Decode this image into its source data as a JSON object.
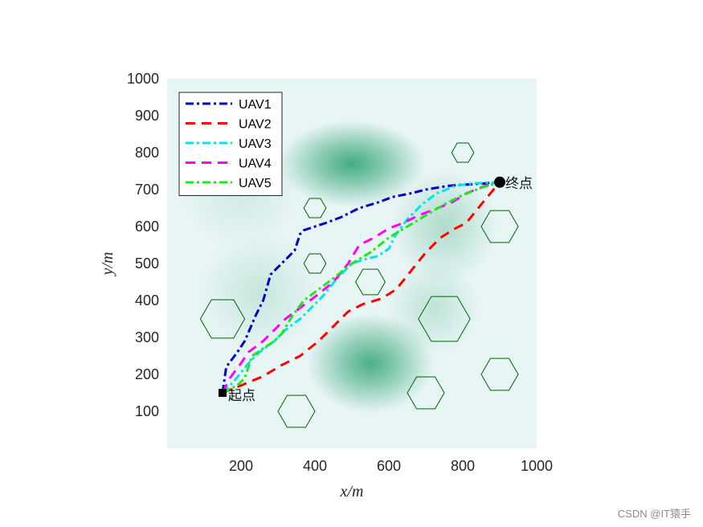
{
  "chart_data": {
    "type": "line",
    "xlabel": "x/m",
    "ylabel": "y/m",
    "xlim": [
      0,
      1000
    ],
    "ylim": [
      0,
      1000
    ],
    "xticks": [
      200,
      400,
      600,
      800,
      1000
    ],
    "yticks": [
      100,
      200,
      300,
      400,
      500,
      600,
      700,
      800,
      900,
      1000
    ],
    "grid": false,
    "legend_position": "top-left",
    "background_color": "#e8f5f5",
    "terrain_color": "#3aa87a",
    "terrain_peaks": [
      {
        "x": 500,
        "y": 770,
        "sx": 110,
        "sy": 65,
        "h": 1.0
      },
      {
        "x": 550,
        "y": 230,
        "sx": 95,
        "sy": 75,
        "h": 0.95
      },
      {
        "x": 750,
        "y": 600,
        "sx": 80,
        "sy": 85,
        "h": 0.35
      },
      {
        "x": 720,
        "y": 380,
        "sx": 70,
        "sy": 70,
        "h": 0.25
      },
      {
        "x": 250,
        "y": 420,
        "sx": 90,
        "sy": 90,
        "h": 0.2
      },
      {
        "x": 200,
        "y": 700,
        "sx": 90,
        "sy": 90,
        "h": 0.15
      }
    ],
    "obstacle_color": "#006400",
    "obstacles": [
      {
        "x": 800,
        "y": 800,
        "r": 30
      },
      {
        "x": 400,
        "y": 650,
        "r": 30
      },
      {
        "x": 900,
        "y": 600,
        "r": 50
      },
      {
        "x": 400,
        "y": 500,
        "r": 30
      },
      {
        "x": 550,
        "y": 450,
        "r": 40
      },
      {
        "x": 150,
        "y": 350,
        "r": 60
      },
      {
        "x": 750,
        "y": 350,
        "r": 70
      },
      {
        "x": 900,
        "y": 200,
        "r": 50
      },
      {
        "x": 700,
        "y": 150,
        "r": 50
      },
      {
        "x": 350,
        "y": 100,
        "r": 50
      }
    ],
    "start": {
      "x": 150,
      "y": 150,
      "label": "起点"
    },
    "goal": {
      "x": 900,
      "y": 720,
      "label": "终点"
    },
    "series": [
      {
        "name": "UAV1",
        "color": "#0000cd",
        "dash": "dashdot",
        "points": [
          [
            150,
            150
          ],
          [
            160,
            220
          ],
          [
            190,
            260
          ],
          [
            210,
            290
          ],
          [
            240,
            360
          ],
          [
            260,
            400
          ],
          [
            280,
            470
          ],
          [
            300,
            490
          ],
          [
            330,
            520
          ],
          [
            345,
            535
          ],
          [
            360,
            580
          ],
          [
            370,
            590
          ],
          [
            400,
            600
          ],
          [
            430,
            610
          ],
          [
            470,
            625
          ],
          [
            520,
            650
          ],
          [
            570,
            665
          ],
          [
            610,
            680
          ],
          [
            660,
            690
          ],
          [
            700,
            700
          ],
          [
            760,
            710
          ],
          [
            800,
            713
          ],
          [
            850,
            716
          ],
          [
            900,
            720
          ]
        ]
      },
      {
        "name": "UAV2",
        "color": "#ff0000",
        "dash": "dashed",
        "points": [
          [
            150,
            150
          ],
          [
            200,
            170
          ],
          [
            260,
            195
          ],
          [
            310,
            225
          ],
          [
            360,
            250
          ],
          [
            410,
            290
          ],
          [
            450,
            330
          ],
          [
            490,
            370
          ],
          [
            530,
            390
          ],
          [
            580,
            405
          ],
          [
            620,
            430
          ],
          [
            660,
            480
          ],
          [
            700,
            530
          ],
          [
            740,
            570
          ],
          [
            780,
            595
          ],
          [
            810,
            610
          ],
          [
            850,
            660
          ],
          [
            900,
            720
          ]
        ]
      },
      {
        "name": "UAV3",
        "color": "#00e5ee",
        "dash": "dashdot",
        "points": [
          [
            150,
            150
          ],
          [
            180,
            180
          ],
          [
            220,
            230
          ],
          [
            250,
            260
          ],
          [
            290,
            290
          ],
          [
            320,
            320
          ],
          [
            360,
            350
          ],
          [
            390,
            380
          ],
          [
            420,
            410
          ],
          [
            460,
            460
          ],
          [
            500,
            500
          ],
          [
            530,
            510
          ],
          [
            570,
            520
          ],
          [
            600,
            540
          ],
          [
            620,
            580
          ],
          [
            650,
            620
          ],
          [
            690,
            660
          ],
          [
            730,
            690
          ],
          [
            780,
            710
          ],
          [
            830,
            717
          ],
          [
            900,
            720
          ]
        ]
      },
      {
        "name": "UAV4",
        "color": "#ff00ff",
        "dash": "dashed",
        "points": [
          [
            150,
            150
          ],
          [
            170,
            190
          ],
          [
            200,
            230
          ],
          [
            220,
            260
          ],
          [
            260,
            290
          ],
          [
            290,
            320
          ],
          [
            320,
            350
          ],
          [
            360,
            380
          ],
          [
            400,
            410
          ],
          [
            450,
            450
          ],
          [
            490,
            500
          ],
          [
            520,
            550
          ],
          [
            560,
            570
          ],
          [
            600,
            595
          ],
          [
            640,
            610
          ],
          [
            680,
            630
          ],
          [
            720,
            645
          ],
          [
            770,
            665
          ],
          [
            810,
            690
          ],
          [
            860,
            710
          ],
          [
            900,
            720
          ]
        ]
      },
      {
        "name": "UAV5",
        "color": "#1ee81e",
        "dash": "dashdot",
        "points": [
          [
            150,
            150
          ],
          [
            190,
            170
          ],
          [
            210,
            190
          ],
          [
            230,
            250
          ],
          [
            260,
            270
          ],
          [
            290,
            290
          ],
          [
            310,
            310
          ],
          [
            340,
            360
          ],
          [
            370,
            400
          ],
          [
            410,
            430
          ],
          [
            450,
            460
          ],
          [
            500,
            500
          ],
          [
            550,
            530
          ],
          [
            600,
            570
          ],
          [
            650,
            600
          ],
          [
            700,
            630
          ],
          [
            750,
            660
          ],
          [
            800,
            685
          ],
          [
            850,
            705
          ],
          [
            900,
            720
          ]
        ]
      }
    ]
  },
  "watermark": "CSDN @IT猿手"
}
